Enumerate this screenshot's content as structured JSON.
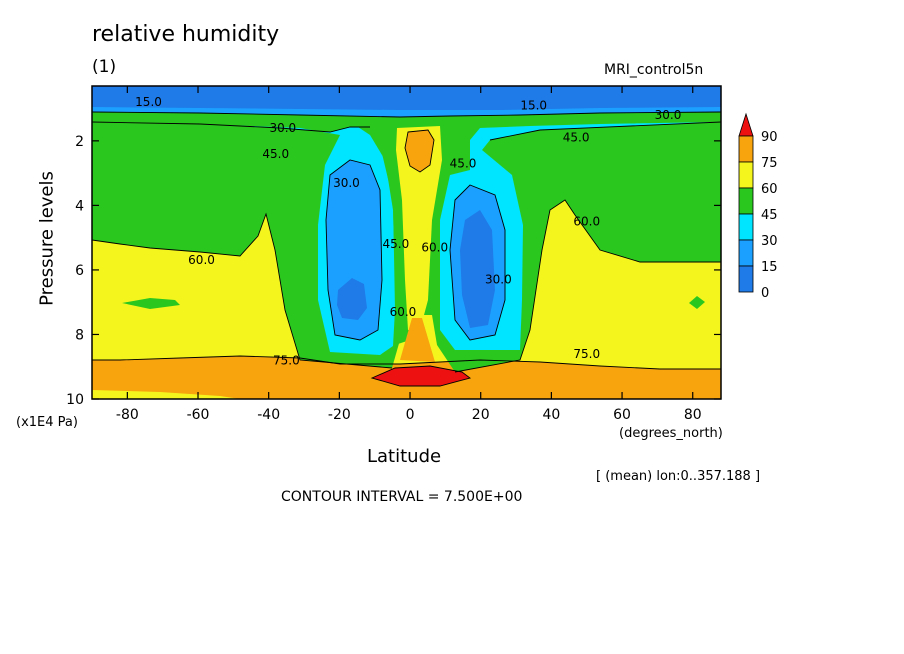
{
  "title": "relative humidity",
  "subtitle": "(1)",
  "dataset_label": "MRI_control5n",
  "mean_note": "[ (mean) lon:0..357.188 ]",
  "contour_interval": "CONTOUR INTERVAL = 7.500E+00",
  "colors": {
    "0": "#1e7be8",
    "15": "#1ca0ff",
    "30": "#00e5ff",
    "45": "#2ac81f",
    "60": "#f5f51e",
    "75": "#f7a40d",
    "90": "#ee1111"
  },
  "chart_data": {
    "type": "heatmap",
    "subtype": "filled-contour",
    "xlabel": "Latitude",
    "x_units": "(degrees_north)",
    "ylabel": "Pressure levels",
    "y_units": "(x1E4 Pa)",
    "xlim": [
      -90,
      88
    ],
    "ylim": [
      10,
      0.3
    ],
    "y_inverted": true,
    "x_ticks": [
      -80,
      -60,
      -40,
      -20,
      0,
      20,
      40,
      60,
      80
    ],
    "y_ticks": [
      2,
      4,
      6,
      8,
      10
    ],
    "colorbar": {
      "levels": [
        0,
        15,
        30,
        45,
        60,
        75,
        90
      ],
      "labels": [
        "90",
        "75",
        "60",
        "45",
        "30",
        "15",
        "0"
      ],
      "extend": "max"
    },
    "contour_labels": [
      {
        "text": "15.0",
        "lat": -74,
        "p": 0.8
      },
      {
        "text": "15.0",
        "lat": 35,
        "p": 0.9
      },
      {
        "text": "30.0",
        "lat": -36,
        "p": 1.6
      },
      {
        "text": "30.0",
        "lat": 73,
        "p": 1.2
      },
      {
        "text": "30.0",
        "lat": -18,
        "p": 3.3
      },
      {
        "text": "30.0",
        "lat": 25,
        "p": 6.3
      },
      {
        "text": "45.0",
        "lat": -38,
        "p": 2.4
      },
      {
        "text": "45.0",
        "lat": 47,
        "p": 1.9
      },
      {
        "text": "45.0",
        "lat": 15,
        "p": 2.7
      },
      {
        "text": "45.0",
        "lat": -4,
        "p": 5.2
      },
      {
        "text": "60.0",
        "lat": -59,
        "p": 5.7
      },
      {
        "text": "60.0",
        "lat": 7,
        "p": 5.3
      },
      {
        "text": "60.0",
        "lat": -2,
        "p": 7.3
      },
      {
        "text": "60.0",
        "lat": 50,
        "p": 4.5
      },
      {
        "text": "75.0",
        "lat": -35,
        "p": 8.8
      },
      {
        "text": "75.0",
        "lat": 50,
        "p": 8.6
      }
    ],
    "regions": [
      {
        "band": "0-15",
        "description": "top of atmosphere, all latitudes",
        "p_range": [
          0.3,
          1.0
        ]
      },
      {
        "band": "15-30",
        "description": "upper troposphere strip",
        "p_range": [
          1.0,
          1.5
        ]
      },
      {
        "band": "30-45",
        "description": "subtropical dry zones near 15S and 15N",
        "lat_centers": [
          -15,
          20
        ]
      },
      {
        "band": "0-15",
        "description": "driest cores near 15S and 20N",
        "lat_centers": [
          -17,
          21
        ]
      },
      {
        "band": "75-90",
        "description": "tropical upper maximum near equator",
        "lat": 3,
        "p": 2.0
      },
      {
        "band": "90+",
        "description": "near-surface equatorial maximum",
        "lat": 3,
        "p": 9.3
      },
      {
        "band": "75-90",
        "description": "boundary layer, all latitudes",
        "p_range": [
          8.8,
          10
        ]
      }
    ]
  }
}
